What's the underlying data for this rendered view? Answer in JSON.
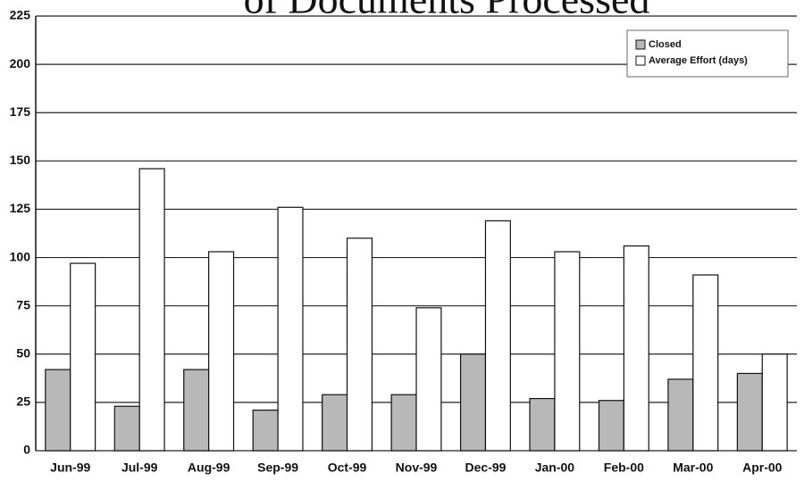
{
  "chart_data": {
    "type": "bar",
    "title": "of Documents Processed",
    "categories": [
      "Jun-99",
      "Jul-99",
      "Aug-99",
      "Sep-99",
      "Oct-99",
      "Nov-99",
      "Dec-99",
      "Jan-00",
      "Feb-00",
      "Mar-00",
      "Apr-00"
    ],
    "series": [
      {
        "name": "Closed",
        "color": "#b8b8b8",
        "values": [
          42,
          23,
          42,
          21,
          29,
          29,
          50,
          27,
          26,
          37,
          40
        ]
      },
      {
        "name": "Average Effort (days)",
        "color": "#ffffff",
        "values": [
          97,
          146,
          103,
          126,
          110,
          74,
          119,
          103,
          106,
          91,
          50
        ]
      }
    ],
    "ylim": [
      0,
      225
    ],
    "yticks": [
      0,
      25,
      50,
      75,
      100,
      125,
      150,
      175,
      200,
      225
    ],
    "grid": true,
    "legend": "top-right"
  }
}
